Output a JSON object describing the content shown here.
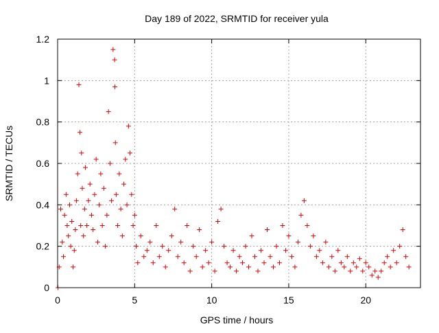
{
  "chart_data": {
    "type": "scatter",
    "title": "Day 189 of 2022, SRMTID for receiver yula",
    "xlabel": "GPS time / hours",
    "ylabel": "SRMTID / TECUs",
    "xlim": [
      0,
      23.55
    ],
    "ylim": [
      0,
      1.2
    ],
    "xticks": [
      0,
      5,
      10,
      15,
      20
    ],
    "xtick_labels": [
      "0",
      "5",
      "10",
      "15",
      "20"
    ],
    "yticks": [
      0,
      0.2,
      0.4,
      0.6,
      0.8,
      1,
      1.2
    ],
    "ytick_labels": [
      "0",
      "0.2",
      "0.4",
      "0.6",
      "0.8",
      "1",
      "1.2"
    ],
    "grid": true,
    "marker": "+",
    "series": [
      {
        "name": "SRMTID",
        "color": "#dd0000",
        "x": [
          0.02,
          0.1,
          0.2,
          0.3,
          0.38,
          0.45,
          0.55,
          0.62,
          0.7,
          0.78,
          0.85,
          0.92,
          1.0,
          1.08,
          1.15,
          1.22,
          1.3,
          1.38,
          1.45,
          1.5,
          1.55,
          1.6,
          1.68,
          1.75,
          1.8,
          1.9,
          2.0,
          2.1,
          2.2,
          2.3,
          2.4,
          2.5,
          2.6,
          2.7,
          2.8,
          2.9,
          3.0,
          3.1,
          3.2,
          3.3,
          3.4,
          3.5,
          3.6,
          3.7,
          3.72,
          3.75,
          3.8,
          3.9,
          4.0,
          4.1,
          4.2,
          4.3,
          4.4,
          4.5,
          4.6,
          4.7,
          4.8,
          4.9,
          5.0,
          5.1,
          5.2,
          5.4,
          5.6,
          5.8,
          6.0,
          6.2,
          6.4,
          6.6,
          6.8,
          7.0,
          7.2,
          7.4,
          7.6,
          7.8,
          8.0,
          8.2,
          8.4,
          8.6,
          8.8,
          9.0,
          9.2,
          9.4,
          9.6,
          9.8,
          10.0,
          10.2,
          10.4,
          10.6,
          10.8,
          11.0,
          11.2,
          11.4,
          11.6,
          11.8,
          12.0,
          12.2,
          12.4,
          12.6,
          12.8,
          13.0,
          13.2,
          13.4,
          13.6,
          13.8,
          14.0,
          14.2,
          14.4,
          14.6,
          14.8,
          15.0,
          15.2,
          15.4,
          15.6,
          15.8,
          16.0,
          16.2,
          16.4,
          16.6,
          16.8,
          17.0,
          17.2,
          17.4,
          17.6,
          17.8,
          18.0,
          18.2,
          18.4,
          18.6,
          18.8,
          19.0,
          19.2,
          19.4,
          19.6,
          19.8,
          20.0,
          20.2,
          20.4,
          20.6,
          20.8,
          21.0,
          21.2,
          21.4,
          21.6,
          21.8,
          22.0,
          22.2,
          22.4,
          22.6,
          22.8
        ],
        "y": [
          0.0,
          0.1,
          0.38,
          0.22,
          0.15,
          0.35,
          0.45,
          0.3,
          0.25,
          0.4,
          0.2,
          0.32,
          0.1,
          0.18,
          0.28,
          0.42,
          0.55,
          0.98,
          0.75,
          0.3,
          0.65,
          0.48,
          0.25,
          0.38,
          0.58,
          0.3,
          0.42,
          0.5,
          0.35,
          0.28,
          0.45,
          0.62,
          0.22,
          0.4,
          0.55,
          0.3,
          0.48,
          0.2,
          0.35,
          0.85,
          0.6,
          0.42,
          1.15,
          1.1,
          0.97,
          0.7,
          0.45,
          0.3,
          0.55,
          0.38,
          0.25,
          0.5,
          0.62,
          0.4,
          0.78,
          0.65,
          0.45,
          0.3,
          0.35,
          0.2,
          0.12,
          0.25,
          0.15,
          0.18,
          0.22,
          0.12,
          0.3,
          0.15,
          0.2,
          0.1,
          0.18,
          0.25,
          0.38,
          0.15,
          0.22,
          0.12,
          0.3,
          0.08,
          0.2,
          0.15,
          0.28,
          0.1,
          0.18,
          0.12,
          0.22,
          0.08,
          0.32,
          0.38,
          0.2,
          0.12,
          0.1,
          0.18,
          0.08,
          0.15,
          0.12,
          0.2,
          0.1,
          0.25,
          0.15,
          0.08,
          0.18,
          0.12,
          0.28,
          0.15,
          0.1,
          0.2,
          0.12,
          0.3,
          0.18,
          0.25,
          0.15,
          0.1,
          0.22,
          0.35,
          0.42,
          0.3,
          0.2,
          0.25,
          0.15,
          0.18,
          0.12,
          0.22,
          0.1,
          0.15,
          0.08,
          0.18,
          0.12,
          0.1,
          0.15,
          0.08,
          0.12,
          0.1,
          0.14,
          0.08,
          0.12,
          0.1,
          0.06,
          0.08,
          0.05,
          0.08,
          0.12,
          0.15,
          0.1,
          0.18,
          0.12,
          0.2,
          0.28,
          0.15,
          0.1
        ]
      }
    ]
  }
}
